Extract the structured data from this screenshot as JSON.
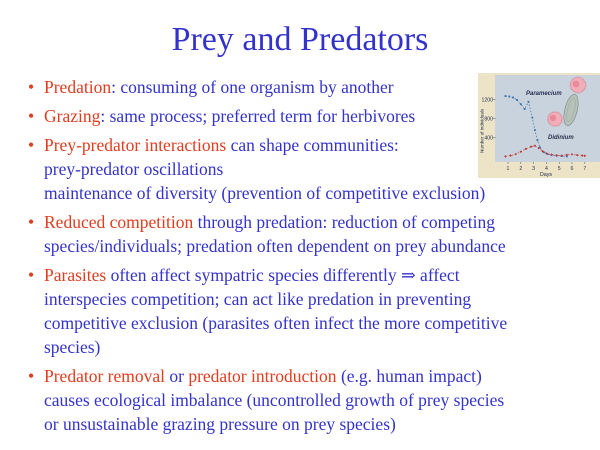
{
  "title": "Prey and Predators",
  "bullet_char": "•",
  "colors": {
    "body": "#3333CC",
    "accent": "#E03C1E",
    "chart_frame": "#EDE4C8",
    "chart_bg": "#C9D3DE",
    "chart_text": "#24304e",
    "paramecium_series": "#3A6EA8",
    "didinium_series": "#C23730",
    "paramecium_cell_fill": "#B7C2BA",
    "paramecium_cell_stroke": "#77897E",
    "didinium_cell_fill": "#F2AEB8",
    "didinium_cell_stroke": "#D5808F"
  },
  "bullets": [
    {
      "lines": [
        [
          {
            "t": "Predation",
            "c": "red"
          },
          {
            "t": ": consuming of one organism by another",
            "c": "blue"
          }
        ]
      ]
    },
    {
      "lines": [
        [
          {
            "t": "Grazing",
            "c": "red"
          },
          {
            "t": ": same process; preferred term for herbivores",
            "c": "blue"
          }
        ]
      ]
    },
    {
      "lines": [
        [
          {
            "t": "Prey-predator interactions",
            "c": "red"
          },
          {
            "t": " can shape communities:",
            "c": "blue"
          }
        ],
        [
          {
            "t": "prey-predator oscillations",
            "c": "blue"
          }
        ],
        [
          {
            "t": "maintenance of diversity (prevention of competitive exclusion)",
            "c": "blue"
          }
        ]
      ]
    },
    {
      "lines": [
        [
          {
            "t": "Reduced competition",
            "c": "red"
          },
          {
            "t": " through predation: reduction of competing",
            "c": "blue"
          }
        ],
        [
          {
            "t": "species/individuals; predation often dependent on prey abundance",
            "c": "blue"
          }
        ]
      ]
    },
    {
      "lines": [
        [
          {
            "t": "Parasites",
            "c": "red"
          },
          {
            "t": " often affect sympatric species differently ⇒ affect",
            "c": "blue"
          }
        ],
        [
          {
            "t": "interspecies competition; can act like predation in preventing",
            "c": "blue"
          }
        ],
        [
          {
            "t": "competitive exclusion (parasites often infect the more competitive",
            "c": "blue"
          }
        ],
        [
          {
            "t": "species)",
            "c": "blue"
          }
        ]
      ]
    },
    {
      "lines": [
        [
          {
            "t": "Predator removal",
            "c": "red"
          },
          {
            "t": " or ",
            "c": "blue"
          },
          {
            "t": "predator introduction",
            "c": "red"
          },
          {
            "t": " (e.g. human impact)",
            "c": "blue"
          }
        ],
        [
          {
            "t": "causes ecological imbalance (uncontrolled growth of prey species",
            "c": "blue"
          }
        ],
        [
          {
            "t": "or unsustainable grazing pressure on prey species)",
            "c": "blue"
          }
        ]
      ]
    }
  ],
  "chart_data": {
    "type": "line",
    "title": "",
    "xlabel": "Days",
    "ylabel": "Number of individuals",
    "xticks": [
      1,
      2,
      3,
      4,
      5,
      6,
      7
    ],
    "yticks": [
      400,
      800,
      1200
    ],
    "xlim": [
      0,
      7.3
    ],
    "ylim": [
      0,
      1400
    ],
    "grid": false,
    "legend_position": "inline-labels",
    "line_style": "dotted",
    "series": [
      {
        "name": "Paramecium",
        "color": "#3A6EA8",
        "marker": "square",
        "points": [
          [
            0.8,
            1270
          ],
          [
            1.1,
            1260
          ],
          [
            1.4,
            1240
          ],
          [
            1.7,
            1190
          ],
          [
            2.0,
            1100
          ],
          [
            2.3,
            1000
          ],
          [
            2.6,
            1150
          ],
          [
            2.9,
            820
          ],
          [
            3.1,
            560
          ],
          [
            3.3,
            350
          ],
          [
            3.5,
            200
          ],
          [
            3.8,
            100
          ],
          [
            4.1,
            60
          ],
          [
            4.4,
            40
          ],
          [
            4.8,
            28
          ],
          [
            5.2,
            18
          ],
          [
            5.6,
            12
          ]
        ]
      },
      {
        "name": "Didinium",
        "color": "#C23730",
        "marker": "diamond",
        "points": [
          [
            0.8,
            12
          ],
          [
            1.2,
            30
          ],
          [
            1.6,
            60
          ],
          [
            2.0,
            110
          ],
          [
            2.4,
            170
          ],
          [
            2.8,
            215
          ],
          [
            3.1,
            235
          ],
          [
            3.4,
            185
          ],
          [
            3.7,
            120
          ],
          [
            4.0,
            75
          ],
          [
            4.4,
            50
          ],
          [
            4.8,
            35
          ],
          [
            5.2,
            30
          ],
          [
            5.6,
            45
          ],
          [
            6.0,
            55
          ],
          [
            6.4,
            40
          ],
          [
            6.8,
            30
          ],
          [
            7.0,
            25
          ]
        ]
      }
    ],
    "annotations": [
      "Paramecium",
      "Didinium"
    ]
  }
}
